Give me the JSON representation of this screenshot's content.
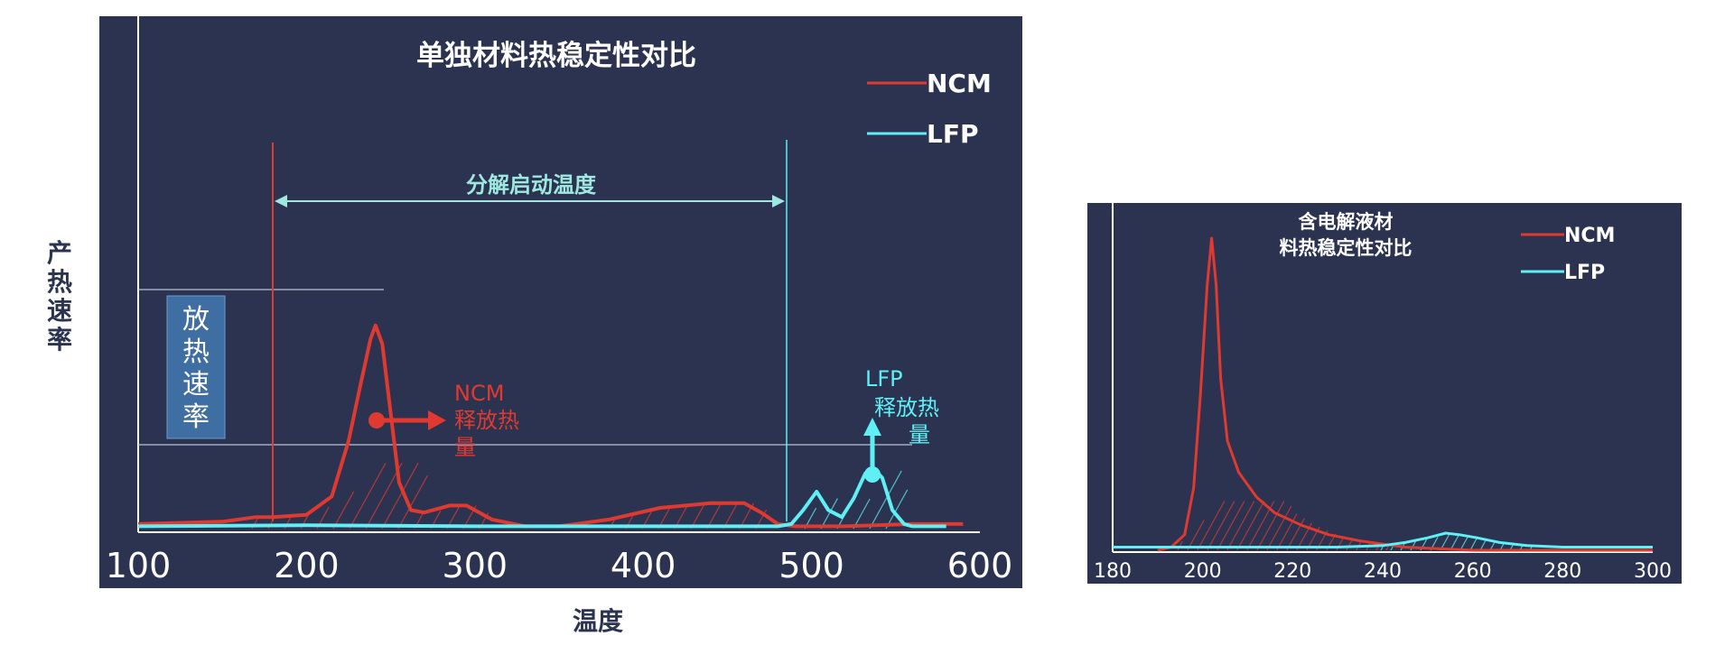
{
  "page": {
    "ylabel": "产热速率",
    "xlabel": "温度"
  },
  "colors": {
    "panel_bg": "#2b3350",
    "ncm": "#e03a30",
    "lfp": "#5ef0f5",
    "annot_line": "#9fe8e0",
    "box_fill": "#3f6ea3",
    "box_text": "#ffffff",
    "white": "#ffffff"
  },
  "annotations": {
    "decomp_label": "分解启动温度",
    "rate_box": "放热速率",
    "ncm_label_line1": "NCM",
    "ncm_label_line2": "释放热",
    "ncm_label_line3": "量",
    "lfp_label_line1": "LFP",
    "lfp_label_line2": "释放热",
    "lfp_label_line3": "量"
  },
  "chart_data": [
    {
      "type": "line",
      "title": "单独材料热稳定性对比",
      "xlabel": "温度",
      "ylabel": "产热速率",
      "xlim": [
        100,
        600
      ],
      "ylim": [
        0,
        100
      ],
      "xticks": [
        "100",
        "200",
        "300",
        "400",
        "500",
        "600"
      ],
      "legend": {
        "position": "top-right",
        "entries": [
          "NCM",
          "LFP"
        ]
      },
      "series": [
        {
          "name": "NCM",
          "color": "#e03a30",
          "x": [
            100,
            150,
            170,
            180,
            200,
            215,
            225,
            232,
            238,
            241,
            245,
            250,
            255,
            262,
            270,
            285,
            295,
            310,
            330,
            350,
            380,
            410,
            440,
            460,
            470,
            480,
            490,
            520,
            560,
            590
          ],
          "y": [
            2,
            3,
            5,
            5,
            6,
            14,
            38,
            62,
            82,
            88,
            80,
            50,
            20,
            8,
            7,
            10,
            10,
            4,
            1,
            1,
            4,
            9,
            11,
            11,
            7,
            2,
            1,
            1,
            2,
            2
          ]
        },
        {
          "name": "LFP",
          "color": "#5ef0f5",
          "x": [
            100,
            200,
            300,
            400,
            480,
            488,
            495,
            503,
            510,
            518,
            525,
            532,
            537,
            542,
            548,
            555,
            560,
            580
          ],
          "y": [
            1,
            1.5,
            1,
            1,
            1,
            2,
            8,
            16,
            8,
            5,
            13,
            24,
            26,
            22,
            8,
            2,
            1,
            1
          ]
        }
      ]
    },
    {
      "type": "line",
      "title": "含电解液材料热稳定性对比",
      "xlim": [
        180,
        300
      ],
      "ylim": [
        0,
        100
      ],
      "xticks": [
        "180",
        "200",
        "220",
        "240",
        "260",
        "280",
        "300"
      ],
      "legend": {
        "position": "top-right",
        "entries": [
          "NCM",
          "LFP"
        ]
      },
      "series": [
        {
          "name": "NCM",
          "color": "#e03a30",
          "x": [
            190,
            193,
            196,
            198,
            199.5,
            201,
            202,
            203,
            204,
            205.5,
            208,
            212,
            216,
            222,
            228,
            235,
            245,
            260,
            280,
            300
          ],
          "y": [
            0,
            1,
            5,
            20,
            50,
            85,
            100,
            85,
            55,
            35,
            25,
            17,
            12,
            8,
            5,
            3,
            1,
            0,
            0,
            0
          ]
        },
        {
          "name": "LFP",
          "color": "#5ef0f5",
          "x": [
            180,
            200,
            230,
            240,
            245,
            250,
            254,
            257,
            261,
            266,
            272,
            280,
            300
          ],
          "y": [
            1,
            1,
            1,
            1.5,
            2.5,
            4,
            5.5,
            5,
            4,
            2.5,
            1.5,
            1,
            1
          ]
        }
      ]
    }
  ]
}
